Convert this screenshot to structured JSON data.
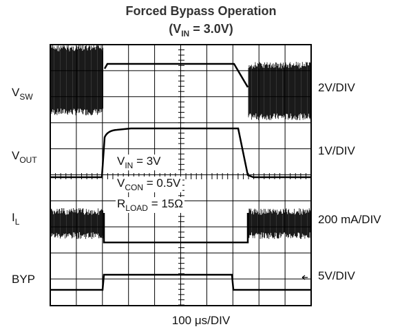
{
  "chart_data": {
    "type": "scope",
    "title": "Forced Bypass Operation",
    "subtitle": [
      "(V",
      "IN",
      " = 3.0V)"
    ],
    "channels": [
      {
        "name": [
          "V",
          "SW"
        ],
        "scale": "2V/DIV"
      },
      {
        "name": [
          "V",
          "OUT"
        ],
        "scale": "1V/DIV"
      },
      {
        "name": [
          "I",
          "L"
        ],
        "scale": "200 mA/DIV"
      },
      {
        "name": [
          "BYP"
        ],
        "scale": "5V/DIV"
      }
    ],
    "annotations": [
      [
        "V",
        "IN",
        " = 3V"
      ],
      [
        "V",
        "CON",
        " = 0.5V"
      ],
      [
        "R",
        "LOAD",
        " = 15Ω"
      ]
    ],
    "x_label": "100 μs/DIV"
  }
}
